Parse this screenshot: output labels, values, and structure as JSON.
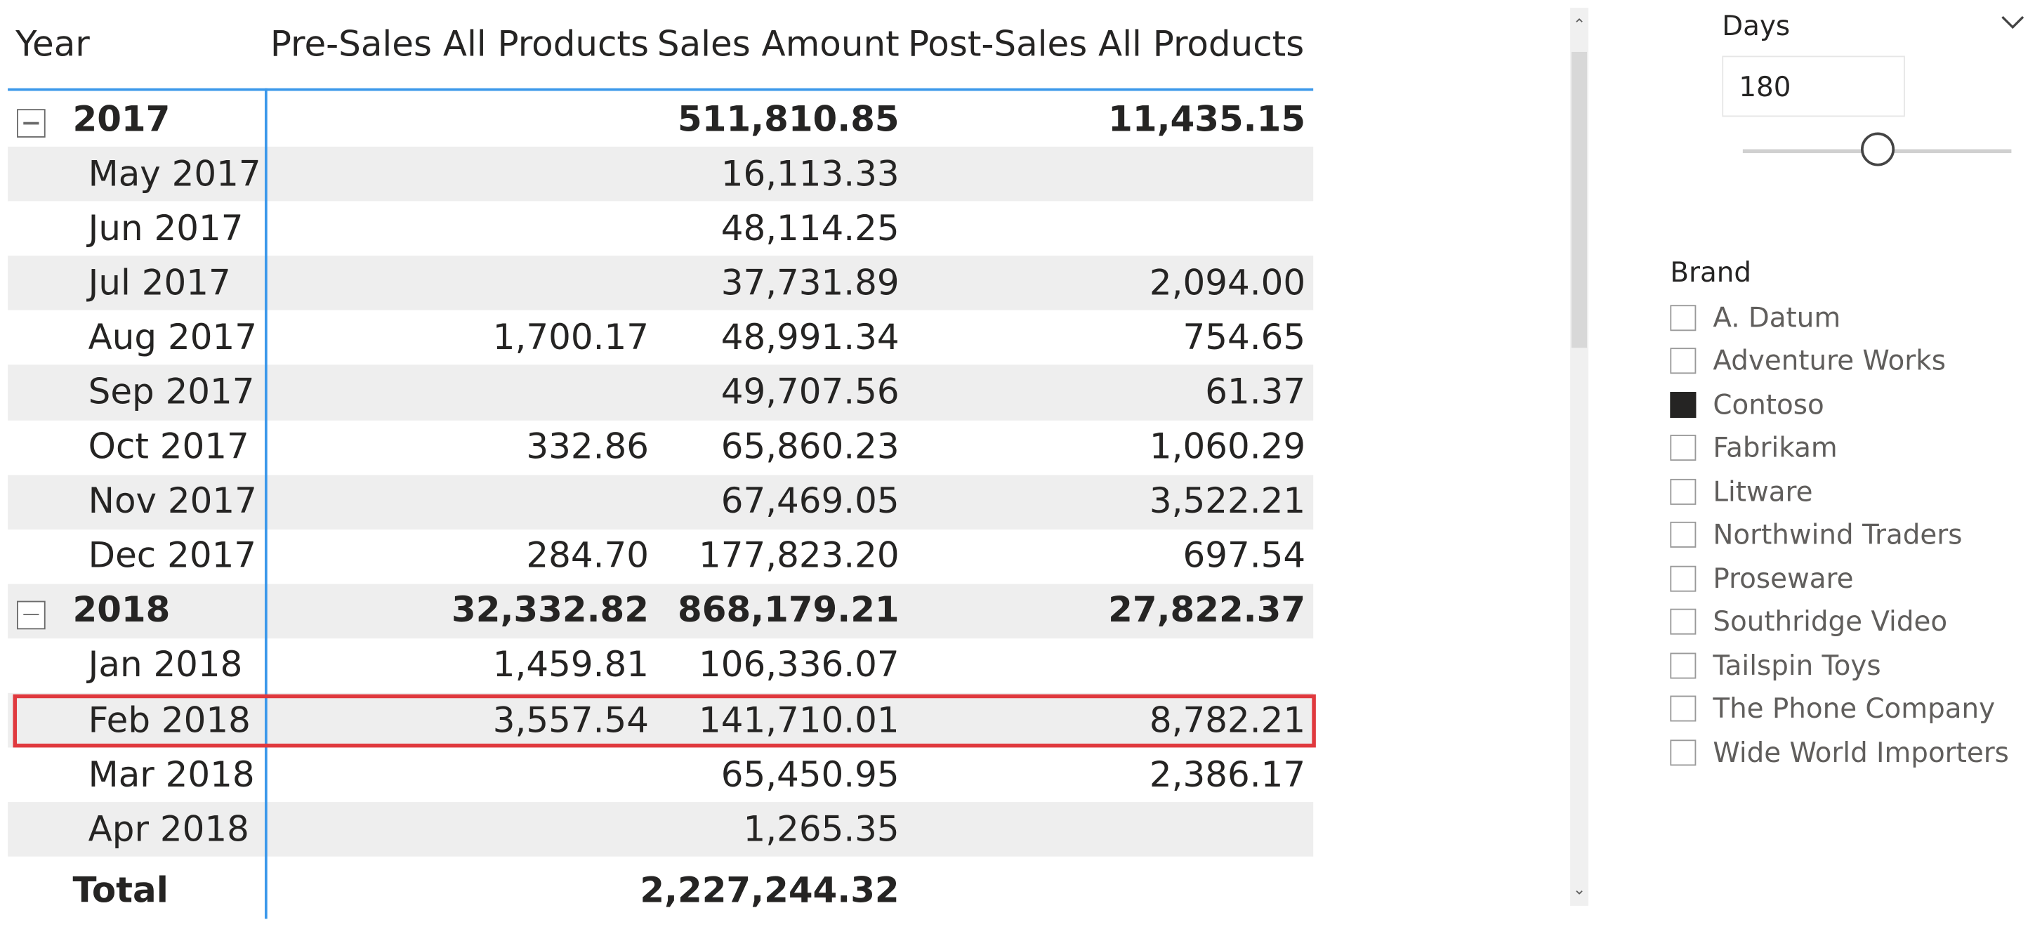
{
  "matrix": {
    "headers": {
      "year": "Year",
      "pre_sales": "Pre-Sales All Products",
      "sales_amount": "Sales Amount",
      "post_sales": "Post-Sales All Products"
    },
    "rows": [
      {
        "type": "year",
        "label": "2017",
        "pre": "",
        "sales": "511,810.85",
        "post": "11,435.15"
      },
      {
        "type": "month",
        "label": "May 2017",
        "pre": "",
        "sales": "16,113.33",
        "post": ""
      },
      {
        "type": "month",
        "label": "Jun 2017",
        "pre": "",
        "sales": "48,114.25",
        "post": ""
      },
      {
        "type": "month",
        "label": "Jul 2017",
        "pre": "",
        "sales": "37,731.89",
        "post": "2,094.00"
      },
      {
        "type": "month",
        "label": "Aug 2017",
        "pre": "1,700.17",
        "sales": "48,991.34",
        "post": "754.65"
      },
      {
        "type": "month",
        "label": "Sep 2017",
        "pre": "",
        "sales": "49,707.56",
        "post": "61.37"
      },
      {
        "type": "month",
        "label": "Oct 2017",
        "pre": "332.86",
        "sales": "65,860.23",
        "post": "1,060.29"
      },
      {
        "type": "month",
        "label": "Nov 2017",
        "pre": "",
        "sales": "67,469.05",
        "post": "3,522.21"
      },
      {
        "type": "month",
        "label": "Dec 2017",
        "pre": "284.70",
        "sales": "177,823.20",
        "post": "697.54"
      },
      {
        "type": "year",
        "label": "2018",
        "pre": "32,332.82",
        "sales": "868,179.21",
        "post": "27,822.37"
      },
      {
        "type": "month",
        "label": "Jan 2018",
        "pre": "1,459.81",
        "sales": "106,336.07",
        "post": ""
      },
      {
        "type": "month",
        "label": "Feb 2018",
        "pre": "3,557.54",
        "sales": "141,710.01",
        "post": "8,782.21",
        "highlighted": true
      },
      {
        "type": "month",
        "label": "Mar 2018",
        "pre": "",
        "sales": "65,450.95",
        "post": "2,386.17"
      },
      {
        "type": "month",
        "label": "Apr 2018",
        "pre": "",
        "sales": "1,265.35",
        "post": ""
      }
    ],
    "total": {
      "label": "Total",
      "pre": "",
      "sales": "2,227,244.32",
      "post": ""
    },
    "accent_color": "#3b98ea",
    "highlight_color": "#e0393e"
  },
  "days_slicer": {
    "title": "Days",
    "value": "180",
    "slider_position": 0.5
  },
  "brand_slicer": {
    "title": "Brand",
    "items": [
      {
        "label": "A. Datum",
        "checked": false
      },
      {
        "label": "Adventure Works",
        "checked": false
      },
      {
        "label": "Contoso",
        "checked": true
      },
      {
        "label": "Fabrikam",
        "checked": false
      },
      {
        "label": "Litware",
        "checked": false
      },
      {
        "label": "Northwind Traders",
        "checked": false
      },
      {
        "label": "Proseware",
        "checked": false
      },
      {
        "label": "Southridge Video",
        "checked": false
      },
      {
        "label": "Tailspin Toys",
        "checked": false
      },
      {
        "label": "The Phone Company",
        "checked": false
      },
      {
        "label": "Wide World Importers",
        "checked": false
      }
    ]
  }
}
